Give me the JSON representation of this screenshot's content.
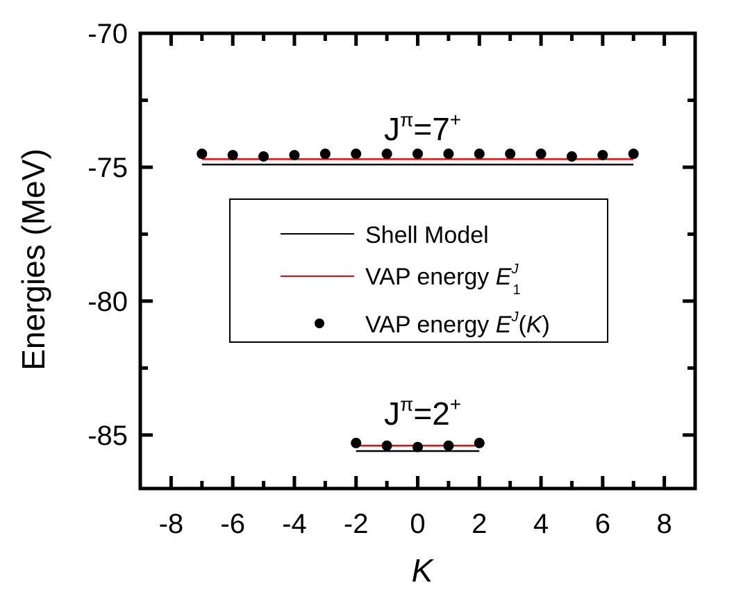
{
  "chart_data": {
    "type": "line+scatter",
    "xlabel": "K",
    "ylabel": "Energies (MeV)",
    "xlim": [
      -9,
      9
    ],
    "ylim": [
      -87,
      -70
    ],
    "xticks": [
      -8,
      -6,
      -4,
      -2,
      0,
      2,
      4,
      6,
      8
    ],
    "yticks": [
      -70,
      -75,
      -80,
      -85
    ],
    "grid": false,
    "legend": {
      "position": "center",
      "entries": [
        {
          "label": "Shell Model",
          "style": "line",
          "color": "#000000"
        },
        {
          "label": "VAP energy E_1^J",
          "style": "line",
          "color": "#ff0000"
        },
        {
          "label": "VAP energy E^J(K)",
          "style": "marker",
          "color": "#000000"
        }
      ]
    },
    "groups": [
      {
        "annotation": "J^π=7^+",
        "shell_model": {
          "x": [
            -7,
            7
          ],
          "y": -74.9
        },
        "vap_line": {
          "x": [
            -7,
            7
          ],
          "y": -74.7
        },
        "points": {
          "x": [
            -7,
            -6,
            -5,
            -4,
            -3,
            -2,
            -1,
            0,
            1,
            2,
            3,
            4,
            5,
            6,
            7
          ],
          "y": [
            -74.5,
            -74.55,
            -74.6,
            -74.55,
            -74.5,
            -74.5,
            -74.5,
            -74.5,
            -74.5,
            -74.5,
            -74.5,
            -74.5,
            -74.6,
            -74.55,
            -74.5
          ]
        }
      },
      {
        "annotation": "J^π=2^+",
        "shell_model": {
          "x": [
            -2,
            2
          ],
          "y": -85.6
        },
        "vap_line": {
          "x": [
            -2,
            2
          ],
          "y": -85.4
        },
        "points": {
          "x": [
            -2,
            -1,
            0,
            1,
            2
          ],
          "y": [
            -85.3,
            -85.4,
            -85.45,
            -85.4,
            -85.3
          ]
        }
      }
    ]
  },
  "text": {
    "xlabel": "K",
    "ylabel": "Energies (MeV)",
    "legend_shell": "Shell Model",
    "legend_vap_line": "VAP energy ",
    "legend_vap_points": "VAP energy ",
    "sym_E": "E",
    "sup_J": "J",
    "sub_1": "1",
    "paren_open": "(",
    "paren_K": "K",
    "paren_close": ")",
    "J": "J",
    "pi": "π",
    "plus": "+",
    "eq7": "=7",
    "eq2": "=2"
  }
}
